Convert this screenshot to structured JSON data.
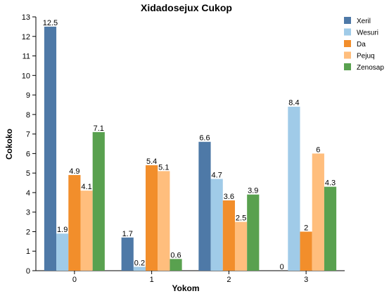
{
  "chart_data": {
    "type": "bar",
    "title": "Xidadosejux Cukop",
    "xlabel": "Yokom",
    "ylabel": "Cokoko",
    "categories": [
      "0",
      "1",
      "2",
      "3"
    ],
    "ylim": [
      0,
      13
    ],
    "yticks": [
      0,
      1,
      2,
      3,
      4,
      5,
      6,
      7,
      8,
      9,
      10,
      11,
      12,
      13
    ],
    "grid": false,
    "legend_position": "top-right",
    "series": [
      {
        "name": "Xeril",
        "color": "#4e79a7",
        "values": [
          12.5,
          1.7,
          6.6,
          0
        ]
      },
      {
        "name": "Wesuri",
        "color": "#a0cbe8",
        "values": [
          1.9,
          0.2,
          4.7,
          8.4
        ]
      },
      {
        "name": "Da",
        "color": "#f28e2b",
        "values": [
          4.9,
          5.4,
          3.6,
          2
        ]
      },
      {
        "name": "Pejuq",
        "color": "#ffbe7d",
        "values": [
          4.1,
          5.1,
          2.5,
          6
        ]
      },
      {
        "name": "Zenosap",
        "color": "#59a14f",
        "values": [
          7.1,
          0.6,
          3.9,
          4.3
        ]
      }
    ]
  }
}
